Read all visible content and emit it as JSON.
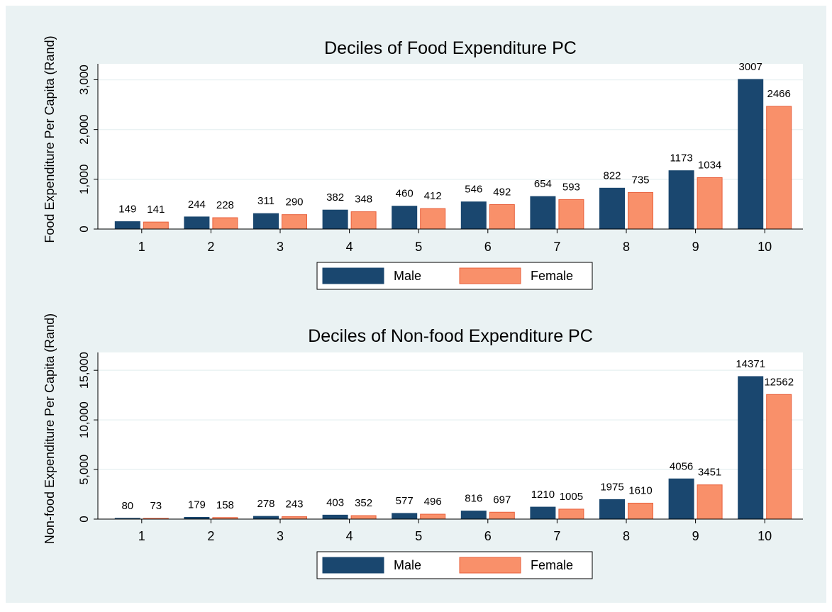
{
  "chart_data": [
    {
      "type": "bar",
      "title": "Deciles of Food Expenditure PC",
      "y_label": "Food Expenditure Per Capita (Rand)",
      "categories": [
        "1",
        "2",
        "3",
        "4",
        "5",
        "6",
        "7",
        "8",
        "9",
        "10"
      ],
      "series": [
        {
          "name": "Male",
          "color": "#1a476f",
          "values": [
            149,
            244,
            311,
            382,
            460,
            546,
            654,
            822,
            1173,
            3007
          ]
        },
        {
          "name": "Female",
          "color": "#f9906a",
          "values": [
            141,
            228,
            290,
            348,
            412,
            492,
            593,
            735,
            1034,
            2466
          ]
        }
      ],
      "ylim": [
        0,
        3320
      ],
      "yticks": [
        0,
        {
          "value": 1000,
          "label": "1,000"
        },
        {
          "value": 2000,
          "label": "2,000"
        },
        {
          "value": 3000,
          "label": "3,000"
        }
      ],
      "grid": true,
      "legend": "bottom"
    },
    {
      "type": "bar",
      "title": "Deciles of Non-food Expenditure PC",
      "y_label": "Non-food Expenditure Per Capita (Rand)",
      "categories": [
        "1",
        "2",
        "3",
        "4",
        "5",
        "6",
        "7",
        "8",
        "9",
        "10"
      ],
      "series": [
        {
          "name": "Male",
          "color": "#1a476f",
          "values": [
            80,
            179,
            278,
            403,
            577,
            816,
            1210,
            1975,
            4056,
            14371
          ]
        },
        {
          "name": "Female",
          "color": "#f9906a",
          "values": [
            73,
            158,
            243,
            352,
            496,
            697,
            1005,
            1610,
            3451,
            12562
          ]
        }
      ],
      "ylim": [
        0,
        16800
      ],
      "yticks": [
        0,
        {
          "value": 5000,
          "label": "5,000"
        },
        {
          "value": 10000,
          "label": "10,000"
        },
        {
          "value": 15000,
          "label": "15,000"
        }
      ],
      "grid": true,
      "legend": "bottom"
    }
  ]
}
